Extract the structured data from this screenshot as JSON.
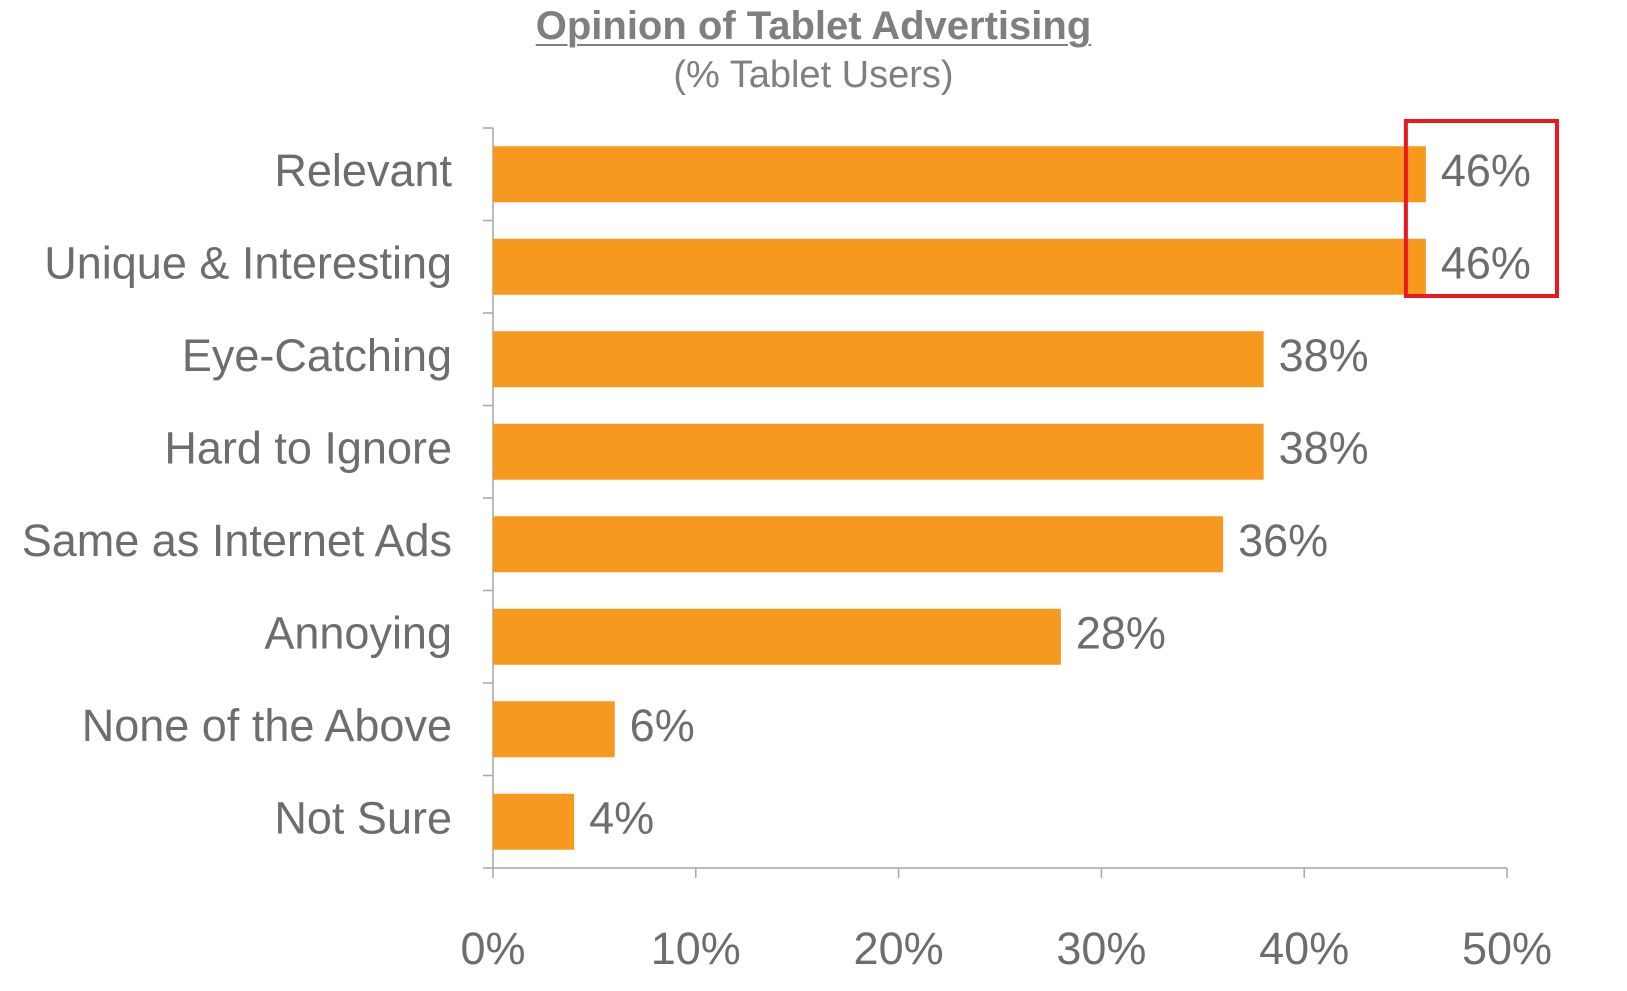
{
  "chart_data": {
    "type": "bar",
    "orientation": "horizontal",
    "title": "Opinion of Tablet Advertising",
    "subtitle": "(% Tablet Users)",
    "categories": [
      "Relevant",
      "Unique & Interesting",
      "Eye-Catching",
      "Hard to Ignore",
      "Same as Internet Ads",
      "Annoying",
      "None of the Above",
      "Not Sure"
    ],
    "values": [
      46,
      46,
      38,
      38,
      36,
      28,
      6,
      4
    ],
    "value_labels": [
      "46%",
      "46%",
      "38%",
      "38%",
      "36%",
      "28%",
      "6%",
      "4%"
    ],
    "x_ticks": [
      "0%",
      "10%",
      "20%",
      "30%",
      "40%",
      "50%"
    ],
    "xlim": [
      0,
      50
    ],
    "grid": false,
    "legend": "none",
    "highlight": {
      "categories": [
        "Relevant",
        "Unique & Interesting"
      ],
      "color": "#e8191f"
    },
    "colors": {
      "bar": "#f7981f",
      "text": "#6d6d6d",
      "axis": "#a6a6a6"
    }
  }
}
